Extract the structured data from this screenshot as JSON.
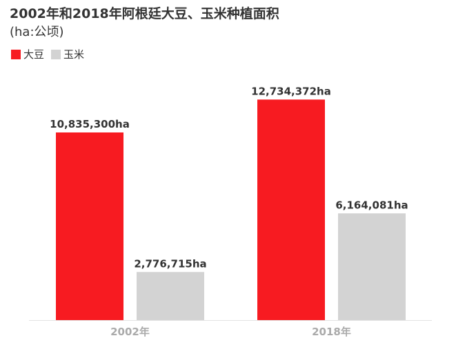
{
  "chart_data": {
    "type": "bar",
    "title": "2002年和2018年阿根廷大豆、玉米种植面积",
    "subtitle": "(ha:公顷)",
    "categories": [
      "2002年",
      "2018年"
    ],
    "series": [
      {
        "name": "大豆",
        "color": "#f71b21",
        "values": [
          10835300,
          12734372
        ],
        "labels": [
          "10,835,300ha",
          "12,734,372ha"
        ]
      },
      {
        "name": "玉米",
        "color": "#d3d3d3",
        "values": [
          2776715,
          6164081
        ],
        "labels": [
          "2,776,715ha",
          "6,164,081ha"
        ]
      }
    ],
    "ylim": [
      0,
      14500000
    ],
    "grid": false,
    "legend_position": "top-left"
  }
}
